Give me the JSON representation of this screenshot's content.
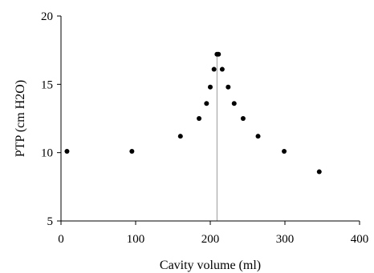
{
  "chart_data": {
    "type": "scatter",
    "title": "",
    "xlabel": "Cavity volume (ml)",
    "ylabel": "PTP (cm H2O)",
    "xlim": [
      0,
      400
    ],
    "ylim": [
      5,
      20
    ],
    "xticks": [
      0,
      100,
      200,
      300,
      400
    ],
    "yticks": [
      5,
      10,
      15,
      20
    ],
    "grid": false,
    "legend": "none",
    "points": [
      {
        "x": 8,
        "y": 10.1
      },
      {
        "x": 95,
        "y": 10.1
      },
      {
        "x": 160,
        "y": 11.2
      },
      {
        "x": 185,
        "y": 12.5
      },
      {
        "x": 195,
        "y": 13.6
      },
      {
        "x": 200,
        "y": 14.8
      },
      {
        "x": 205,
        "y": 16.1
      },
      {
        "x": 209,
        "y": 17.2
      },
      {
        "x": 211,
        "y": 17.2
      },
      {
        "x": 216,
        "y": 16.1
      },
      {
        "x": 224,
        "y": 14.8
      },
      {
        "x": 232,
        "y": 13.6
      },
      {
        "x": 244,
        "y": 12.5
      },
      {
        "x": 264,
        "y": 11.2
      },
      {
        "x": 299,
        "y": 10.1
      },
      {
        "x": 346,
        "y": 8.6
      }
    ],
    "reference_line": {
      "x": 209,
      "y_from": 5,
      "y_to": 17.2
    }
  },
  "colors": {
    "point": "#000000",
    "axis": "#000000",
    "reference_line": "#9a9a9a"
  }
}
